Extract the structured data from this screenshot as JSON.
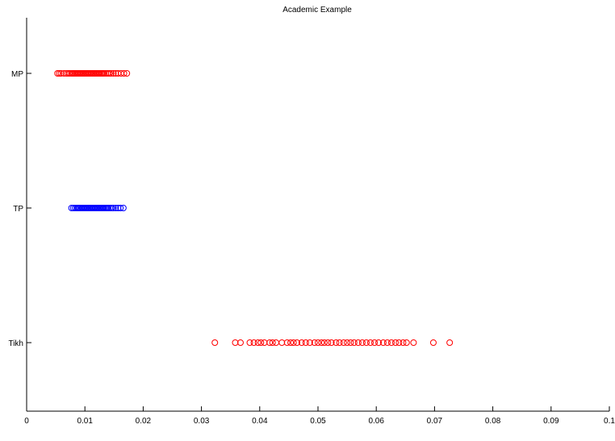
{
  "chart_data": {
    "type": "scatter",
    "title": "Academic Example",
    "xlabel": "",
    "ylabel": "",
    "xlim": [
      0,
      0.1
    ],
    "x_ticks": [
      "0",
      "0.01",
      "0.02",
      "0.03",
      "0.04",
      "0.05",
      "0.06",
      "0.07",
      "0.08",
      "0.09",
      "0.1"
    ],
    "x_tick_values": [
      0,
      0.01,
      0.02,
      0.03,
      0.04,
      0.05,
      0.06,
      0.07,
      0.08,
      0.09,
      0.1
    ],
    "categories": [
      "MP",
      "TP",
      "Tikh"
    ],
    "grid": false,
    "series": [
      {
        "category": "MP",
        "color": "#ff0000",
        "marker": "circle",
        "x": [
          0.0053,
          0.0056,
          0.0059,
          0.0064,
          0.0068,
          0.0071,
          0.0074,
          0.0077,
          0.0079,
          0.0081,
          0.0083,
          0.0085,
          0.0087,
          0.0089,
          0.0091,
          0.0093,
          0.0095,
          0.0097,
          0.0099,
          0.0101,
          0.0103,
          0.0105,
          0.0107,
          0.0109,
          0.0111,
          0.0113,
          0.0115,
          0.0117,
          0.0119,
          0.0121,
          0.0123,
          0.0125,
          0.0127,
          0.0129,
          0.0131,
          0.0133,
          0.0136,
          0.0139,
          0.0142,
          0.0145,
          0.0149,
          0.0153,
          0.0157,
          0.0162,
          0.0167,
          0.0172
        ]
      },
      {
        "category": "TP",
        "color": "#0000ff",
        "marker": "circle",
        "x": [
          0.0077,
          0.008,
          0.0083,
          0.0086,
          0.0088,
          0.009,
          0.0092,
          0.0094,
          0.0096,
          0.0098,
          0.01,
          0.0102,
          0.0104,
          0.0106,
          0.0108,
          0.011,
          0.0112,
          0.0114,
          0.0116,
          0.0118,
          0.012,
          0.0122,
          0.0124,
          0.0126,
          0.0128,
          0.013,
          0.0132,
          0.0134,
          0.0136,
          0.0138,
          0.014,
          0.0143,
          0.0146,
          0.0149,
          0.0153,
          0.0157,
          0.0161,
          0.0166
        ]
      },
      {
        "category": "Tikh",
        "color": "#ff0000",
        "marker": "circle",
        "x": [
          0.0323,
          0.0358,
          0.0367,
          0.0383,
          0.039,
          0.0397,
          0.0402,
          0.0408,
          0.0417,
          0.0422,
          0.0428,
          0.0438,
          0.0447,
          0.0453,
          0.0458,
          0.0464,
          0.0472,
          0.0479,
          0.0486,
          0.0494,
          0.05,
          0.0506,
          0.0511,
          0.0517,
          0.0523,
          0.0531,
          0.0537,
          0.0544,
          0.055,
          0.0556,
          0.0562,
          0.0569,
          0.0576,
          0.0583,
          0.059,
          0.0597,
          0.0604,
          0.0612,
          0.0619,
          0.0626,
          0.0633,
          0.0639,
          0.0646,
          0.0652,
          0.0664,
          0.0698,
          0.0726
        ]
      }
    ]
  }
}
